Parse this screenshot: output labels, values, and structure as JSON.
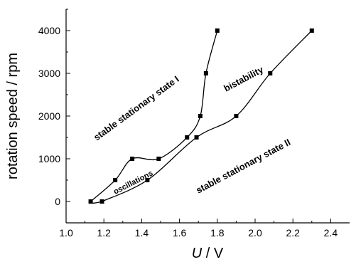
{
  "chart_data": {
    "type": "scatter",
    "title": "",
    "xlabel": {
      "symbol": "U",
      "unit": " / V"
    },
    "ylabel": "rotation speed / rpm",
    "xlim": [
      1.0,
      2.5
    ],
    "ylim": [
      -500,
      4500
    ],
    "x_ticks": [
      "1.0",
      "1.2",
      "1.4",
      "1.6",
      "1.8",
      "2.0",
      "2.2",
      "2.4"
    ],
    "y_ticks": [
      "0",
      "1000",
      "2000",
      "3000",
      "4000"
    ],
    "grid": false,
    "marker": "square",
    "color": "#000000",
    "series": [
      {
        "role": "boundary stable state I",
        "points": [
          [
            1.13,
            0
          ],
          [
            1.26,
            500
          ],
          [
            1.35,
            1000
          ],
          [
            1.49,
            1000
          ],
          [
            1.64,
            1500
          ],
          [
            1.71,
            2000
          ],
          [
            1.74,
            3000
          ],
          [
            1.8,
            4000
          ]
        ]
      },
      {
        "role": "boundary stable state II",
        "points": [
          [
            1.19,
            0
          ],
          [
            1.43,
            500
          ],
          [
            1.69,
            1500
          ],
          [
            1.9,
            2000
          ],
          [
            2.08,
            3000
          ],
          [
            2.3,
            4000
          ]
        ]
      }
    ],
    "annotations": [
      {
        "id": "state1",
        "text": "stable stationary state I"
      },
      {
        "id": "bistability",
        "text": "bistability"
      },
      {
        "id": "state2",
        "text": "stable stationary state II"
      },
      {
        "id": "oscillations",
        "text": "oscillations"
      }
    ]
  }
}
